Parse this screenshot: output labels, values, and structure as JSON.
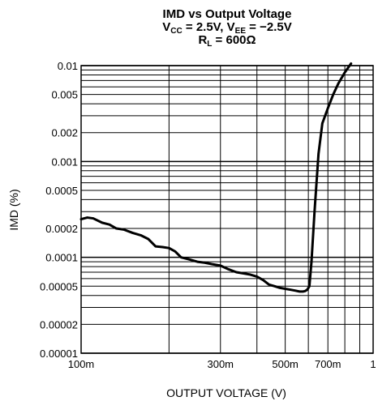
{
  "chart_data": {
    "type": "line",
    "title_main": "IMD vs Output Voltage",
    "title_line2": {
      "prefix": "V",
      "sub1": "CC",
      "mid": " = 2.5V, V",
      "sub2": "EE",
      "suffix": " = −2.5V"
    },
    "title_line3": {
      "prefix": "R",
      "sub1": "L",
      "suffix": " = 600Ω"
    },
    "xlabel": "OUTPUT VOLTAGE (V)",
    "ylabel": "IMD (%)",
    "xscale": "log",
    "yscale": "log",
    "xlim": [
      0.1,
      1
    ],
    "ylim": [
      1e-05,
      0.01
    ],
    "grid": true,
    "x_ticks": [
      {
        "value": 0.1,
        "label": "100m"
      },
      {
        "value": 0.3,
        "label": "300m"
      },
      {
        "value": 0.5,
        "label": "500m"
      },
      {
        "value": 0.7,
        "label": "700m"
      },
      {
        "value": 1,
        "label": "1"
      }
    ],
    "y_ticks": [
      {
        "value": 0.01,
        "label": "0.01"
      },
      {
        "value": 0.005,
        "label": "0.005"
      },
      {
        "value": 0.002,
        "label": "0.002"
      },
      {
        "value": 0.001,
        "label": "0.001"
      },
      {
        "value": 0.0005,
        "label": "0.0005"
      },
      {
        "value": 0.0002,
        "label": "0.0002"
      },
      {
        "value": 0.0001,
        "label": "0.0001"
      },
      {
        "value": 5e-05,
        "label": "0.00005"
      },
      {
        "value": 2e-05,
        "label": "0.00002"
      },
      {
        "value": 1e-05,
        "label": "0.00001"
      }
    ],
    "x_minor_grid": [
      0.2,
      0.3,
      0.4,
      0.5,
      0.6,
      0.7,
      0.8,
      0.9
    ],
    "y_minor_grid": [
      2e-05,
      3e-05,
      4e-05,
      5e-05,
      6e-05,
      7e-05,
      8e-05,
      9e-05,
      0.0002,
      0.0003,
      0.0004,
      0.0005,
      0.0006,
      0.0007,
      0.0008,
      0.0009,
      0.002,
      0.003,
      0.004,
      0.005,
      0.006,
      0.007,
      0.008,
      0.009
    ],
    "series": [
      {
        "color": "#000000",
        "x": [
          0.1,
          0.105,
          0.11,
          0.118,
          0.125,
          0.132,
          0.14,
          0.15,
          0.16,
          0.17,
          0.18,
          0.19,
          0.2,
          0.21,
          0.22,
          0.235,
          0.25,
          0.265,
          0.28,
          0.3,
          0.32,
          0.34,
          0.36,
          0.38,
          0.4,
          0.42,
          0.44,
          0.46,
          0.48,
          0.5,
          0.52,
          0.54,
          0.56,
          0.575,
          0.585,
          0.595,
          0.605,
          0.615,
          0.63,
          0.65,
          0.67,
          0.7,
          0.73,
          0.76,
          0.8,
          0.84
        ],
        "y": [
          0.00025,
          0.00026,
          0.000255,
          0.00023,
          0.00022,
          0.0002,
          0.000195,
          0.00018,
          0.00017,
          0.000155,
          0.00013,
          0.000128,
          0.000125,
          0.000115,
          0.0001,
          9.5e-05,
          9e-05,
          8.8e-05,
          8.5e-05,
          8.2e-05,
          7.5e-05,
          7e-05,
          6.8e-05,
          6.6e-05,
          6.3e-05,
          5.8e-05,
          5.2e-05,
          5e-05,
          4.8e-05,
          4.7e-05,
          4.6e-05,
          4.5e-05,
          4.4e-05,
          4.4e-05,
          4.45e-05,
          4.6e-05,
          5e-05,
          9e-05,
          0.0003,
          0.0012,
          0.0025,
          0.0036,
          0.005,
          0.0065,
          0.0085,
          0.0105
        ]
      }
    ]
  }
}
